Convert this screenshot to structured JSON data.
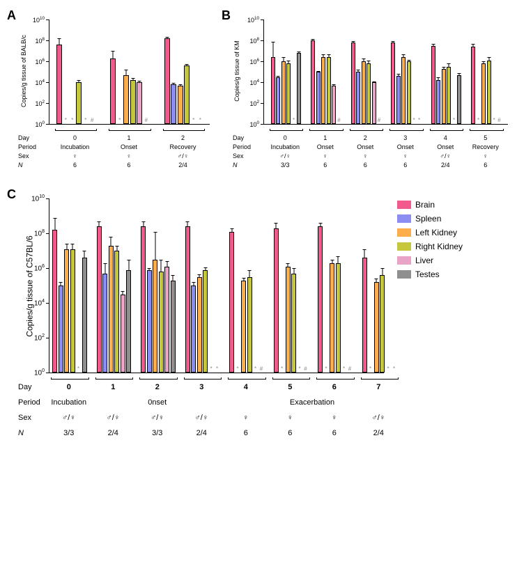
{
  "colors": {
    "brain": "#f25a8e",
    "spleen": "#8b8df0",
    "lkid": "#fcae4d",
    "rkid": "#c5c73d",
    "liver": "#e8a3c6",
    "testes": "#8f8f8f",
    "axis": "#000000",
    "marker": "#999999"
  },
  "legend": [
    {
      "key": "brain",
      "label": "Brain"
    },
    {
      "key": "spleen",
      "label": "Spleen"
    },
    {
      "key": "lkid",
      "label": "Left Kidney"
    },
    {
      "key": "rkid",
      "label": "Right Kidney"
    },
    {
      "key": "liver",
      "label": "Liver"
    },
    {
      "key": "testes",
      "label": "Testes"
    }
  ],
  "y": {
    "min": 0,
    "max": 10,
    "step": 2,
    "labels": [
      "10^0",
      "10^2",
      "10^4",
      "10^6",
      "10^8",
      "10^10"
    ]
  },
  "panelA": {
    "ylabel": "Copies/g tissue of BALB/c",
    "groups": [
      {
        "bars": [
          {
            "c": "brain",
            "v": 7.6,
            "e": 0.6
          },
          {
            "c": "spleen",
            "v": 0,
            "m": "*"
          },
          {
            "c": "lkid",
            "v": 0,
            "m": "*"
          },
          {
            "c": "rkid",
            "v": 4.0,
            "e": 0.2
          },
          {
            "c": "liver",
            "v": 0,
            "m": "*"
          },
          {
            "c": "testes",
            "v": 0,
            "m": "#"
          }
        ],
        "day": "0",
        "period": "Incubation",
        "sex": "♀",
        "n": "6"
      },
      {
        "bars": [
          {
            "c": "brain",
            "v": 6.3,
            "e": 0.7
          },
          {
            "c": "spleen",
            "v": 0,
            "m": "*"
          },
          {
            "c": "lkid",
            "v": 4.7,
            "e": 0.5
          },
          {
            "c": "rkid",
            "v": 4.2,
            "e": 0.2
          },
          {
            "c": "liver",
            "v": 4.0,
            "e": 0.15
          },
          {
            "c": "testes",
            "v": 0,
            "m": "#"
          }
        ],
        "day": "1",
        "period": "Onset",
        "sex": "♀",
        "n": "6"
      },
      {
        "bars": [
          {
            "c": "brain",
            "v": 8.2,
            "e": 0.15
          },
          {
            "c": "spleen",
            "v": 3.8,
            "e": 0.15
          },
          {
            "c": "lkid",
            "v": 3.7,
            "e": 0.1
          },
          {
            "c": "rkid",
            "v": 5.6,
            "e": 0.15
          },
          {
            "c": "liver",
            "v": 0,
            "m": "*"
          },
          {
            "c": "testes",
            "v": 0,
            "m": "*"
          }
        ],
        "day": "2",
        "period": "Recovery",
        "sex": "♂/♀",
        "n": "2/4"
      }
    ]
  },
  "panelB": {
    "ylabel": "Copies/g tissue of KM",
    "groups": [
      {
        "bars": [
          {
            "c": "brain",
            "v": 6.4,
            "e": 1.5
          },
          {
            "c": "spleen",
            "v": 4.5,
            "e": 0.1
          },
          {
            "c": "lkid",
            "v": 6.0,
            "e": 0.4
          },
          {
            "c": "rkid",
            "v": 5.8,
            "e": 0.3
          },
          {
            "c": "liver",
            "v": 0,
            "m": "*"
          },
          {
            "c": "testes",
            "v": 6.8,
            "e": 0.15
          }
        ],
        "day": "0",
        "period": "Incubation",
        "sex": "♂/♀",
        "n": "3/3"
      },
      {
        "bars": [
          {
            "c": "brain",
            "v": 8.0,
            "e": 0.15
          },
          {
            "c": "spleen",
            "v": 5.0,
            "e": 0.1
          },
          {
            "c": "lkid",
            "v": 6.4,
            "e": 0.3
          },
          {
            "c": "rkid",
            "v": 6.4,
            "e": 0.3
          },
          {
            "c": "liver",
            "v": 3.7,
            "e": 0.1
          },
          {
            "c": "testes",
            "v": 0,
            "m": "#"
          }
        ],
        "day": "1",
        "period": "Onset",
        "sex": "♀",
        "n": "6"
      },
      {
        "bars": [
          {
            "c": "brain",
            "v": 7.8,
            "e": 0.15
          },
          {
            "c": "spleen",
            "v": 5.0,
            "e": 0.2
          },
          {
            "c": "lkid",
            "v": 6.0,
            "e": 0.3
          },
          {
            "c": "rkid",
            "v": 5.8,
            "e": 0.3
          },
          {
            "c": "liver",
            "v": 4.0,
            "e": 0.1
          },
          {
            "c": "testes",
            "v": 0,
            "m": "#"
          }
        ],
        "day": "2",
        "period": "Onset",
        "sex": "♀",
        "n": "6"
      },
      {
        "bars": [
          {
            "c": "brain",
            "v": 7.8,
            "e": 0.15
          },
          {
            "c": "spleen",
            "v": 4.6,
            "e": 0.2
          },
          {
            "c": "lkid",
            "v": 6.4,
            "e": 0.3
          },
          {
            "c": "rkid",
            "v": 6.0,
            "e": 0.15
          },
          {
            "c": "liver",
            "v": 0,
            "m": "*"
          },
          {
            "c": "testes",
            "v": 0,
            "m": "*"
          }
        ],
        "day": "3",
        "period": "Onset",
        "sex": "♀",
        "n": "6"
      },
      {
        "bars": [
          {
            "c": "brain",
            "v": 7.5,
            "e": 0.15
          },
          {
            "c": "spleen",
            "v": 4.2,
            "e": 0.3
          },
          {
            "c": "lkid",
            "v": 5.3,
            "e": 0.2
          },
          {
            "c": "rkid",
            "v": 5.5,
            "e": 0.3
          },
          {
            "c": "liver",
            "v": 0,
            "m": "*"
          },
          {
            "c": "testes",
            "v": 4.7,
            "e": 0.15
          }
        ],
        "day": "4",
        "period": "Onset",
        "sex": "♂/♀",
        "n": "2/4"
      },
      {
        "bars": [
          {
            "c": "brain",
            "v": 7.4,
            "e": 0.3
          },
          {
            "c": "spleen",
            "v": 0,
            "m": "*"
          },
          {
            "c": "lkid",
            "v": 5.8,
            "e": 0.2
          },
          {
            "c": "rkid",
            "v": 6.1,
            "e": 0.3
          },
          {
            "c": "liver",
            "v": 0,
            "m": "*"
          },
          {
            "c": "testes",
            "v": 0,
            "m": "#"
          }
        ],
        "day": "5",
        "period": "Recovery",
        "sex": "♀",
        "n": "6"
      }
    ]
  },
  "panelC": {
    "ylabel": "Copies/g tissue of C57BL/6",
    "groups": [
      {
        "bars": [
          {
            "c": "brain",
            "v": 8.2,
            "e": 0.7
          },
          {
            "c": "spleen",
            "v": 5.0,
            "e": 0.2
          },
          {
            "c": "lkid",
            "v": 7.1,
            "e": 0.3
          },
          {
            "c": "rkid",
            "v": 7.1,
            "e": 0.3
          },
          {
            "c": "liver",
            "v": 0,
            "m": "*"
          },
          {
            "c": "testes",
            "v": 6.6,
            "e": 0.4
          }
        ],
        "day": "0",
        "sex": "♂/♀",
        "n": "3/3"
      },
      {
        "bars": [
          {
            "c": "brain",
            "v": 8.4,
            "e": 0.3
          },
          {
            "c": "spleen",
            "v": 5.7,
            "e": 0.6
          },
          {
            "c": "lkid",
            "v": 7.3,
            "e": 0.5
          },
          {
            "c": "rkid",
            "v": 7.0,
            "e": 0.3
          },
          {
            "c": "liver",
            "v": 4.5,
            "e": 0.2
          },
          {
            "c": "testes",
            "v": 5.9,
            "e": 0.6
          }
        ],
        "day": "1",
        "sex": "♂/♀",
        "n": "2/4"
      },
      {
        "bars": [
          {
            "c": "brain",
            "v": 8.4,
            "e": 0.3
          },
          {
            "c": "spleen",
            "v": 5.9,
            "e": 0.1
          },
          {
            "c": "lkid",
            "v": 6.5,
            "e": 1.6
          },
          {
            "c": "rkid",
            "v": 5.8,
            "e": 0.7
          },
          {
            "c": "liver",
            "v": 6.1,
            "e": 0.3
          },
          {
            "c": "testes",
            "v": 5.3,
            "e": 0.3
          }
        ],
        "day": "2",
        "sex": "♂/♀",
        "n": "3/3"
      },
      {
        "bars": [
          {
            "c": "brain",
            "v": 8.4,
            "e": 0.3
          },
          {
            "c": "spleen",
            "v": 5.0,
            "e": 0.2
          },
          {
            "c": "lkid",
            "v": 5.5,
            "e": 0.15
          },
          {
            "c": "rkid",
            "v": 5.9,
            "e": 0.15
          },
          {
            "c": "liver",
            "v": 0,
            "m": "*"
          },
          {
            "c": "testes",
            "v": 0,
            "m": "*"
          }
        ],
        "day": "3",
        "sex": "♂/♀",
        "n": "2/4"
      },
      {
        "bars": [
          {
            "c": "brain",
            "v": 8.1,
            "e": 0.2
          },
          {
            "c": "spleen",
            "v": 0,
            "m": "*"
          },
          {
            "c": "lkid",
            "v": 5.3,
            "e": 0.15
          },
          {
            "c": "rkid",
            "v": 5.5,
            "e": 0.4
          },
          {
            "c": "liver",
            "v": 0,
            "m": "*"
          },
          {
            "c": "testes",
            "v": 0,
            "m": "#"
          }
        ],
        "day": "4",
        "sex": "♀",
        "n": "6"
      },
      {
        "bars": [
          {
            "c": "brain",
            "v": 8.3,
            "e": 0.3
          },
          {
            "c": "spleen",
            "v": 0,
            "m": "*"
          },
          {
            "c": "lkid",
            "v": 6.1,
            "e": 0.2
          },
          {
            "c": "rkid",
            "v": 5.7,
            "e": 0.3
          },
          {
            "c": "liver",
            "v": 0,
            "m": "*"
          },
          {
            "c": "testes",
            "v": 0,
            "m": "#"
          }
        ],
        "day": "5",
        "sex": "♀",
        "n": "6"
      },
      {
        "bars": [
          {
            "c": "brain",
            "v": 8.4,
            "e": 0.2
          },
          {
            "c": "spleen",
            "v": 0,
            "m": "*"
          },
          {
            "c": "lkid",
            "v": 6.3,
            "e": 0.2
          },
          {
            "c": "rkid",
            "v": 6.3,
            "e": 0.4
          },
          {
            "c": "liver",
            "v": 0,
            "m": "*"
          },
          {
            "c": "testes",
            "v": 0,
            "m": "#"
          }
        ],
        "day": "6",
        "sex": "♀",
        "n": "6"
      },
      {
        "bars": [
          {
            "c": "brain",
            "v": 6.6,
            "e": 0.5
          },
          {
            "c": "spleen",
            "v": 0,
            "m": "*"
          },
          {
            "c": "lkid",
            "v": 5.2,
            "e": 0.2
          },
          {
            "c": "rkid",
            "v": 5.6,
            "e": 0.4
          },
          {
            "c": "liver",
            "v": 0,
            "m": "*"
          },
          {
            "c": "testes",
            "v": 0,
            "m": "*"
          }
        ],
        "day": "7",
        "sex": "♂/♀",
        "n": "2/4"
      }
    ],
    "periodSpans": [
      {
        "label": "Incubation",
        "groups": [
          0
        ]
      },
      {
        "label": "0nset",
        "groups": [
          1,
          2,
          3
        ]
      },
      {
        "label": "Exacerbation",
        "groups": [
          4,
          5,
          6,
          7
        ]
      }
    ]
  },
  "rowLabels": {
    "day": "Day",
    "period": "Period",
    "sex": "Sex",
    "n": "N"
  }
}
